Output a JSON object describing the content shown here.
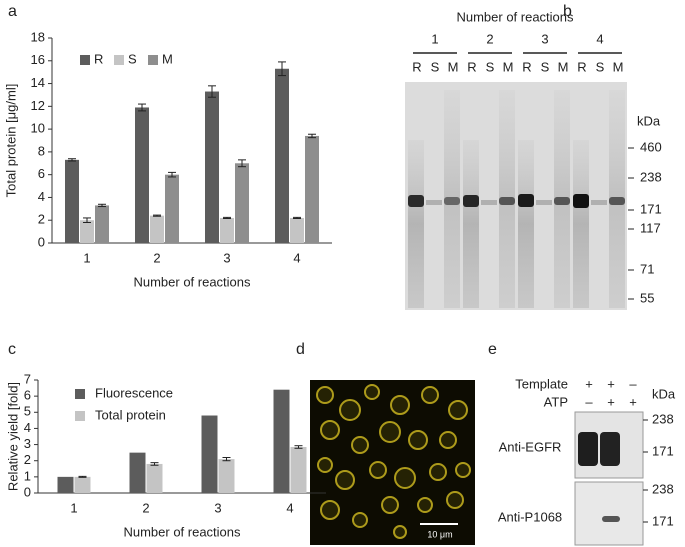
{
  "panel_labels": [
    "a",
    "b",
    "c",
    "d",
    "e"
  ],
  "chart_data": [
    {
      "type": "bar",
      "x_label": "Number of reactions",
      "y_label": "Total protein [μg/ml]",
      "categories": [
        "1",
        "2",
        "3",
        "4"
      ],
      "series": [
        {
          "name": "R",
          "color": "#5c5c5c",
          "values": [
            7.3,
            11.9,
            13.3,
            15.3
          ],
          "errors": [
            0.1,
            0.3,
            0.5,
            0.6
          ]
        },
        {
          "name": "S",
          "color": "#c4c4c4",
          "values": [
            2.0,
            2.4,
            2.2,
            2.2
          ],
          "errors": [
            0.2,
            0.05,
            0.05,
            0.05
          ]
        },
        {
          "name": "M",
          "color": "#8e8e8e",
          "values": [
            3.3,
            6.0,
            7.0,
            9.4
          ],
          "errors": [
            0.1,
            0.2,
            0.3,
            0.15
          ]
        }
      ],
      "ylim": [
        0,
        18
      ],
      "yticks": [
        0,
        2,
        4,
        6,
        8,
        10,
        12,
        14,
        16,
        18
      ],
      "grid": false,
      "legend": "top-left"
    },
    {
      "type": "bar",
      "x_label": "Number of reactions",
      "y_label": "Relative yield [fold]",
      "categories": [
        "1",
        "2",
        "3",
        "4"
      ],
      "series": [
        {
          "name": "Fluorescence",
          "color": "#5c5c5c",
          "values": [
            1,
            2.5,
            4.8,
            6.4
          ]
        },
        {
          "name": "Total protein",
          "color": "#c4c4c4",
          "values": [
            1,
            1.8,
            2.1,
            2.85
          ],
          "errors": [
            0.03,
            0.08,
            0.1,
            0.08
          ]
        }
      ],
      "ylim": [
        0,
        7
      ],
      "yticks": [
        0,
        1,
        2,
        3,
        4,
        5,
        6,
        7
      ],
      "grid": false,
      "legend": "top-left"
    }
  ],
  "gel_b": {
    "title": "Number of reactions",
    "groups": [
      "1",
      "2",
      "3",
      "4"
    ],
    "lanes": [
      "R",
      "S",
      "M"
    ],
    "unit": "kDa",
    "markers": [
      460,
      238,
      171,
      117,
      71,
      55
    ]
  },
  "micrograph_d": {
    "scale_bar": "10 μm"
  },
  "blot_e": {
    "rows": [
      {
        "label": "Template",
        "signs": [
          "+",
          "+",
          "–"
        ]
      },
      {
        "label": "ATP",
        "signs": [
          "–",
          "+",
          "+"
        ]
      }
    ],
    "unit": "kDa",
    "blots": [
      {
        "antibody": "Anti-EGFR",
        "markers": [
          238,
          171
        ]
      },
      {
        "antibody": "Anti-P1068",
        "markers": [
          238,
          171
        ]
      }
    ]
  }
}
